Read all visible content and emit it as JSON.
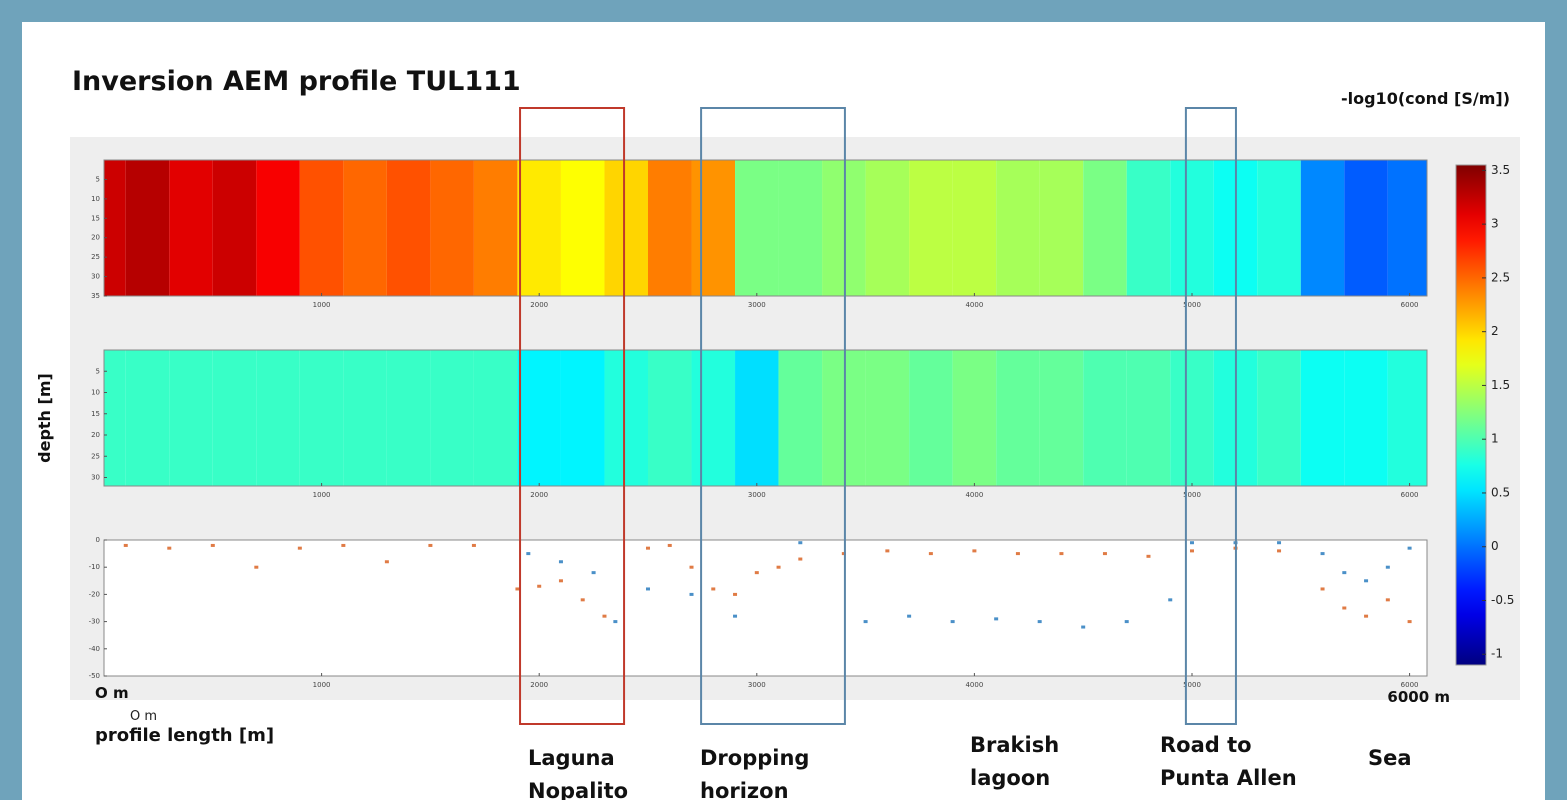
{
  "title": "Inversion AEM profile TUL111",
  "colorbar": {
    "label": "-log10(cond [S/m])",
    "lim": [
      -1.1,
      3.55
    ],
    "ticks": [
      3.5,
      3,
      2.5,
      2,
      1.5,
      1,
      0.5,
      0,
      -0.5,
      -1
    ]
  },
  "ylabel": "depth [m]",
  "xlabel": "profile length [m]",
  "start_labels": [
    "O m",
    "O m"
  ],
  "end_label": "6000 m",
  "xlim": [
    0,
    6080
  ],
  "xticks": [
    1000,
    2000,
    3000,
    4000,
    5000,
    6000
  ],
  "panels": [
    {
      "type": "heatmap",
      "ylim": [
        0,
        35
      ],
      "yticks": [
        5,
        10,
        15,
        20,
        25,
        30,
        35
      ],
      "x": [
        0,
        200,
        400,
        600,
        800,
        1000,
        1200,
        1400,
        1600,
        1800,
        2000,
        2200,
        2400,
        2600,
        2800,
        3000,
        3200,
        3400,
        3600,
        3800,
        4000,
        4200,
        4400,
        4600,
        4800,
        5000,
        5200,
        5400,
        5600,
        5800,
        6000
      ],
      "values": [
        3.2,
        3.3,
        3.1,
        3.2,
        3.0,
        2.6,
        2.5,
        2.6,
        2.5,
        2.4,
        1.9,
        1.8,
        2.0,
        2.4,
        2.3,
        1.2,
        1.2,
        1.3,
        1.4,
        1.5,
        1.5,
        1.4,
        1.4,
        1.2,
        0.9,
        0.8,
        0.7,
        0.8,
        0.1,
        -0.1,
        0.0
      ]
    },
    {
      "type": "heatmap",
      "ylim": [
        0,
        32
      ],
      "yticks": [
        5,
        10,
        15,
        20,
        25,
        30
      ],
      "x": [
        0,
        200,
        400,
        600,
        800,
        1000,
        1200,
        1400,
        1600,
        1800,
        2000,
        2200,
        2400,
        2600,
        2800,
        3000,
        3200,
        3400,
        3600,
        3800,
        4000,
        4200,
        4400,
        4600,
        4800,
        5000,
        5200,
        5400,
        5600,
        5800,
        6000
      ],
      "values": [
        0.9,
        0.9,
        0.9,
        0.9,
        0.9,
        0.9,
        0.9,
        0.9,
        0.9,
        0.9,
        0.6,
        0.6,
        0.8,
        0.9,
        0.8,
        0.5,
        1.1,
        1.2,
        1.2,
        1.1,
        1.2,
        1.1,
        1.1,
        1.0,
        1.0,
        0.9,
        0.8,
        0.9,
        0.7,
        0.7,
        0.8
      ]
    },
    {
      "type": "scatter",
      "ylim": [
        -50,
        0
      ],
      "yticks": [
        0,
        -10,
        -20,
        -30,
        -40,
        -50
      ],
      "series": [
        {
          "color": "#e07b45",
          "x": [
            100,
            300,
            500,
            700,
            900,
            1100,
            1300,
            1500,
            1700,
            1900,
            2000,
            2100,
            2200,
            2300,
            2500,
            2600,
            2700,
            2800,
            2900,
            3000,
            3100,
            3200,
            3400,
            3600,
            3800,
            4000,
            4200,
            4400,
            4600,
            4800,
            5000,
            5200,
            5400,
            5600,
            5700,
            5800,
            5900,
            6000
          ],
          "y": [
            -2,
            -3,
            -2,
            -10,
            -3,
            -2,
            -8,
            -2,
            -2,
            -18,
            -17,
            -15,
            -22,
            -28,
            -3,
            -2,
            -10,
            -18,
            -20,
            -12,
            -10,
            -7,
            -5,
            -4,
            -5,
            -4,
            -5,
            -5,
            -5,
            -6,
            -4,
            -3,
            -4,
            -18,
            -25,
            -28,
            -22,
            -30
          ]
        },
        {
          "color": "#4a90c8",
          "x": [
            1950,
            2100,
            2250,
            2350,
            2500,
            2700,
            2900,
            3200,
            3500,
            3700,
            3900,
            4100,
            4300,
            4500,
            4700,
            4900,
            5000,
            5200,
            5400,
            5600,
            5700,
            5800,
            5900,
            6000
          ],
          "y": [
            -5,
            -8,
            -12,
            -30,
            -18,
            -20,
            -28,
            -1,
            -30,
            -28,
            -30,
            -29,
            -30,
            -32,
            -30,
            -22,
            -1,
            -1,
            -1,
            -5,
            -12,
            -15,
            -10,
            -3
          ]
        }
      ]
    }
  ],
  "annotations": [
    {
      "lines": [
        "Laguna",
        "Nopalito"
      ],
      "box": [
        1912,
        2390
      ],
      "color": "#c0392b"
    },
    {
      "lines": [
        "Dropping",
        "horizon"
      ],
      "box": [
        2744,
        3405
      ],
      "color": "#5b86a8"
    },
    {
      "lines": [
        "Brakish",
        "lagoon"
      ]
    },
    {
      "lines": [
        "Road to",
        "Punta Allen"
      ],
      "box": [
        4972,
        5202
      ],
      "color": "#5b86a8"
    },
    {
      "lines": [
        "Sea"
      ]
    }
  ]
}
